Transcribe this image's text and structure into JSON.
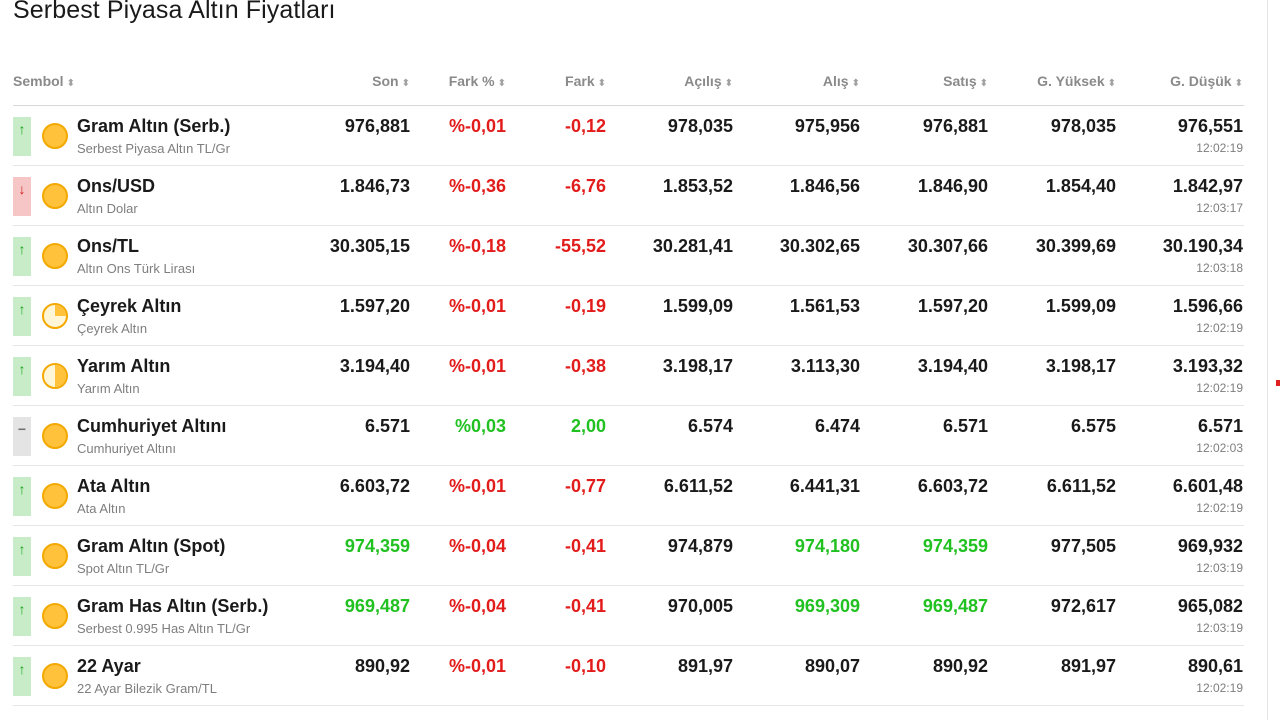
{
  "page": {
    "title": "Serbest Piyasa Altın Fiyatları"
  },
  "columns": [
    {
      "key": "sembol",
      "label": "Sembol",
      "sort_icon": "sort-icon"
    },
    {
      "key": "son",
      "label": "Son",
      "sort_icon": "sort-icon"
    },
    {
      "key": "fark_pct",
      "label": "Fark %",
      "sort_icon": "sort-icon"
    },
    {
      "key": "fark",
      "label": "Fark",
      "sort_icon": "sort-icon"
    },
    {
      "key": "acilis",
      "label": "Açılış",
      "sort_icon": "sort-icon"
    },
    {
      "key": "alis",
      "label": "Alış",
      "sort_icon": "sort-icon"
    },
    {
      "key": "satis",
      "label": "Satış",
      "sort_icon": "sort-icon"
    },
    {
      "key": "g_yuksek",
      "label": "G. Yüksek",
      "sort_icon": "sort-icon"
    },
    {
      "key": "g_dusuk",
      "label": "G. Düşük",
      "sort_icon": "sort-icon"
    }
  ],
  "sort_glyph": "⬍",
  "colors": {
    "up": "#22c122",
    "down": "#e21b1b",
    "neutral": "#1a1a1a",
    "coin": "#ffc23a"
  },
  "rows": [
    {
      "trend": "up",
      "coin": "full",
      "name": "Gram Altın (Serb.)",
      "sub": "Serbest Piyasa Altın TL/Gr",
      "son": "976,881",
      "son_color": "black",
      "fark_pct": "%-0,01",
      "fark": "-0,12",
      "change_color": "red",
      "acilis": "978,035",
      "alis": "975,956",
      "alis_color": "black",
      "satis": "976,881",
      "satis_color": "black",
      "g_yuksek": "978,035",
      "g_dusuk": "976,551",
      "time": "12:02:19"
    },
    {
      "trend": "down",
      "coin": "full",
      "name": "Ons/USD",
      "sub": "Altın Dolar",
      "son": "1.846,73",
      "son_color": "black",
      "fark_pct": "%-0,36",
      "fark": "-6,76",
      "change_color": "red",
      "acilis": "1.853,52",
      "alis": "1.846,56",
      "alis_color": "black",
      "satis": "1.846,90",
      "satis_color": "black",
      "g_yuksek": "1.854,40",
      "g_dusuk": "1.842,97",
      "time": "12:03:17"
    },
    {
      "trend": "up",
      "coin": "full",
      "name": "Ons/TL",
      "sub": "Altın Ons Türk Lirası",
      "son": "30.305,15",
      "son_color": "black",
      "fark_pct": "%-0,18",
      "fark": "-55,52",
      "change_color": "red",
      "acilis": "30.281,41",
      "alis": "30.302,65",
      "alis_color": "black",
      "satis": "30.307,66",
      "satis_color": "black",
      "g_yuksek": "30.399,69",
      "g_dusuk": "30.190,34",
      "time": "12:03:18"
    },
    {
      "trend": "up",
      "coin": "quarter",
      "name": "Çeyrek Altın",
      "sub": "Çeyrek Altın",
      "son": "1.597,20",
      "son_color": "black",
      "fark_pct": "%-0,01",
      "fark": "-0,19",
      "change_color": "red",
      "acilis": "1.599,09",
      "alis": "1.561,53",
      "alis_color": "black",
      "satis": "1.597,20",
      "satis_color": "black",
      "g_yuksek": "1.599,09",
      "g_dusuk": "1.596,66",
      "time": "12:02:19"
    },
    {
      "trend": "up",
      "coin": "half",
      "name": "Yarım Altın",
      "sub": "Yarım Altın",
      "son": "3.194,40",
      "son_color": "black",
      "fark_pct": "%-0,01",
      "fark": "-0,38",
      "change_color": "red",
      "acilis": "3.198,17",
      "alis": "3.113,30",
      "alis_color": "black",
      "satis": "3.194,40",
      "satis_color": "black",
      "g_yuksek": "3.198,17",
      "g_dusuk": "3.193,32",
      "time": "12:02:19"
    },
    {
      "trend": "flat",
      "coin": "full",
      "name": "Cumhuriyet Altını",
      "sub": "Cumhuriyet Altını",
      "son": "6.571",
      "son_color": "black",
      "fark_pct": "%0,03",
      "fark": "2,00",
      "change_color": "green",
      "acilis": "6.574",
      "alis": "6.474",
      "alis_color": "black",
      "satis": "6.571",
      "satis_color": "black",
      "g_yuksek": "6.575",
      "g_dusuk": "6.571",
      "time": "12:02:03"
    },
    {
      "trend": "up",
      "coin": "full",
      "name": "Ata Altın",
      "sub": "Ata Altın",
      "son": "6.603,72",
      "son_color": "black",
      "fark_pct": "%-0,01",
      "fark": "-0,77",
      "change_color": "red",
      "acilis": "6.611,52",
      "alis": "6.441,31",
      "alis_color": "black",
      "satis": "6.603,72",
      "satis_color": "black",
      "g_yuksek": "6.611,52",
      "g_dusuk": "6.601,48",
      "time": "12:02:19"
    },
    {
      "trend": "up",
      "coin": "full",
      "name": "Gram Altın (Spot)",
      "sub": "Spot Altın TL/Gr",
      "son": "974,359",
      "son_color": "green",
      "fark_pct": "%-0,04",
      "fark": "-0,41",
      "change_color": "red",
      "acilis": "974,879",
      "alis": "974,180",
      "alis_color": "green",
      "satis": "974,359",
      "satis_color": "green",
      "g_yuksek": "977,505",
      "g_dusuk": "969,932",
      "time": "12:03:19"
    },
    {
      "trend": "up",
      "coin": "full",
      "name": "Gram Has Altın (Serb.)",
      "sub": "Serbest 0.995 Has Altın TL/Gr",
      "son": "969,487",
      "son_color": "green",
      "fark_pct": "%-0,04",
      "fark": "-0,41",
      "change_color": "red",
      "acilis": "970,005",
      "alis": "969,309",
      "alis_color": "green",
      "satis": "969,487",
      "satis_color": "green",
      "g_yuksek": "972,617",
      "g_dusuk": "965,082",
      "time": "12:03:19"
    },
    {
      "trend": "up",
      "coin": "full",
      "name": "22 Ayar",
      "sub": "22 Ayar Bilezik Gram/TL",
      "son": "890,92",
      "son_color": "black",
      "fark_pct": "%-0,01",
      "fark": "-0,10",
      "change_color": "red",
      "acilis": "891,97",
      "alis": "890,07",
      "alis_color": "black",
      "satis": "890,92",
      "satis_color": "black",
      "g_yuksek": "891,97",
      "g_dusuk": "890,61",
      "time": "12:02:19"
    }
  ]
}
